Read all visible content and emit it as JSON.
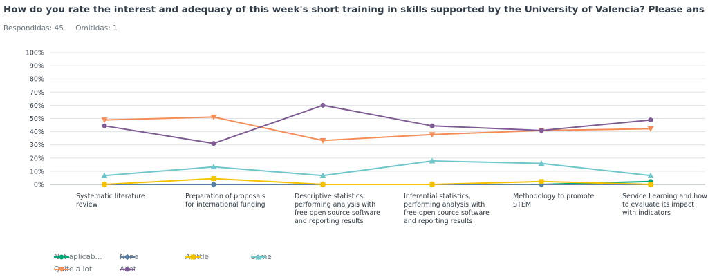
{
  "header": {
    "title": "How do you rate the interest and adequacy of this week's short training in skills supported by the University of Valencia? Please answer for each w…",
    "answered": "Respondidas: 45",
    "skipped": "Omitidas: 1"
  },
  "chart_data": {
    "type": "line",
    "ylim": [
      0,
      100
    ],
    "yticks": [
      "0%",
      "10%",
      "20%",
      "30%",
      "40%",
      "50%",
      "60%",
      "70%",
      "80%",
      "90%",
      "100%"
    ],
    "grid": true,
    "legend_position": "bottom-left",
    "categories": [
      [
        "Systematic literature",
        "review"
      ],
      [
        "Preparation of proposals",
        "for international funding"
      ],
      [
        "Descriptive statistics,",
        "performing analysis with",
        "free open source software",
        "and reporting results"
      ],
      [
        "Inferential statistics,",
        "performing analysis with",
        "free open source software",
        "and reporting results"
      ],
      [
        "Methodology to promote",
        "STEM"
      ],
      [
        "Service Learning and how",
        "to evaluate its impact",
        "with indicators"
      ]
    ],
    "series": [
      {
        "name": "Not aplicab...",
        "color": "#00a878",
        "marker": "circle",
        "values": [
          0,
          0,
          0,
          0,
          0,
          2.2
        ]
      },
      {
        "name": "None",
        "color": "#5b7fa5",
        "marker": "diamond",
        "values": [
          0,
          0,
          0,
          0,
          0,
          0
        ]
      },
      {
        "name": "A little",
        "color": "#f4c300",
        "marker": "square",
        "values": [
          0,
          4.4,
          0,
          0,
          2.2,
          0
        ]
      },
      {
        "name": "Some",
        "color": "#6ec6cb",
        "marker": "triangle-up",
        "values": [
          6.7,
          13.3,
          6.7,
          17.8,
          15.9,
          6.7
        ]
      },
      {
        "name": "Quite a lot",
        "color": "#f58d56",
        "marker": "triangle-down",
        "values": [
          48.9,
          51.1,
          33.3,
          37.8,
          40.9,
          42.2
        ]
      },
      {
        "name": "A lot",
        "color": "#7e5c93",
        "marker": "circle",
        "values": [
          44.4,
          31.1,
          60.0,
          44.4,
          40.9,
          48.9
        ]
      }
    ]
  }
}
